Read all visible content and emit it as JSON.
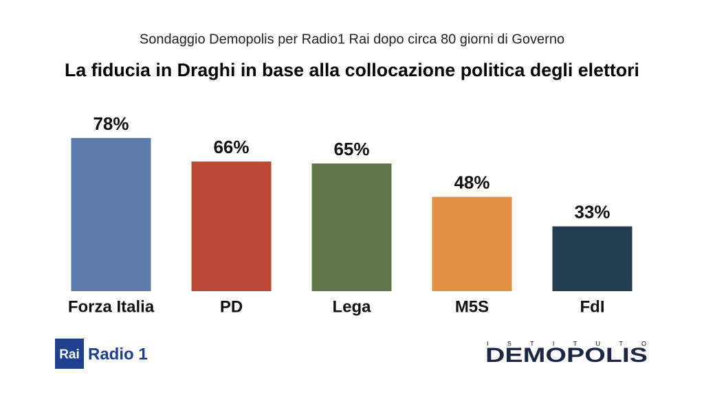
{
  "chart_data": {
    "type": "bar",
    "subtitle": "Sondaggio Demopolis per Radio1 Rai dopo circa 80 giorni di Governo",
    "title": "La fiducia in Draghi in base alla collocazione politica degli elettori",
    "categories": [
      "Forza Italia",
      "PD",
      "Lega",
      "M5S",
      "FdI"
    ],
    "values": [
      78,
      66,
      65,
      48,
      33
    ],
    "value_labels": [
      "78%",
      "66%",
      "65%",
      "48%",
      "33%"
    ],
    "colors": [
      "#5b7ba8",
      "#b94834",
      "#5f7746",
      "#e09145",
      "#223d50"
    ],
    "ylim": [
      0,
      100
    ]
  },
  "logos": {
    "rai": "Rai",
    "radio": "Radio 1",
    "istituto": "ISTITUTO",
    "demopolis": "DEMOPOLIS"
  }
}
